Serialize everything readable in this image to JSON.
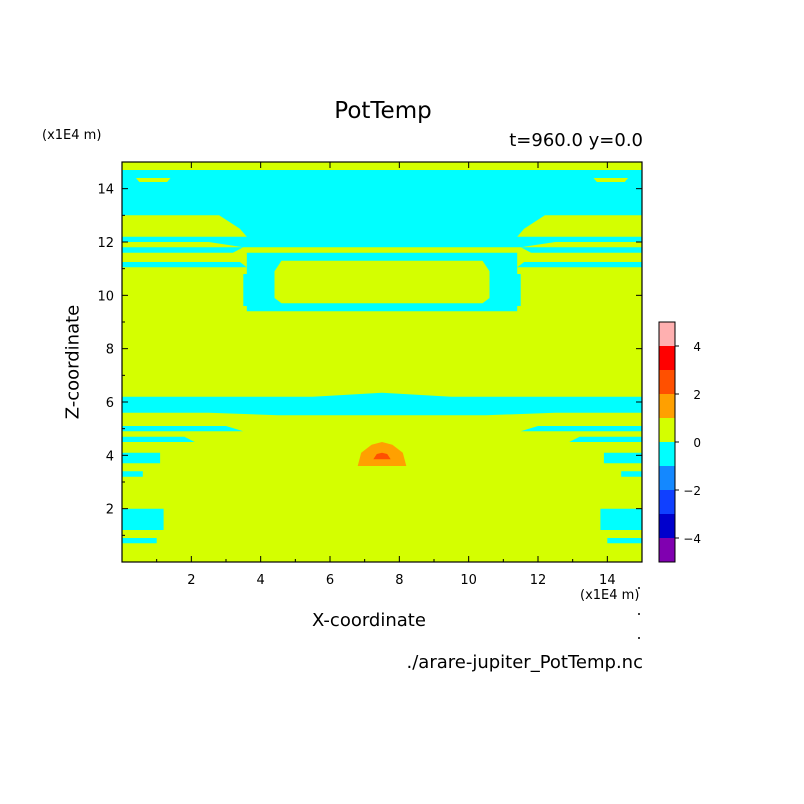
{
  "chart_data": {
    "type": "heatmap",
    "title": "PotTemp",
    "subtitle": "t=960.0 y=0.0",
    "xlabel": "X-coordinate",
    "ylabel": "Z-coordinate",
    "x_unit": "(x1E4 m)",
    "y_unit": "(x1E4 m)",
    "xlim": [
      0,
      15
    ],
    "ylim": [
      0,
      15
    ],
    "xticks": [
      2,
      4,
      6,
      8,
      10,
      12,
      14
    ],
    "yticks": [
      2,
      4,
      6,
      8,
      10,
      12,
      14
    ],
    "colorbar": {
      "levels": [
        -5,
        -4,
        -3,
        -2,
        -1,
        0,
        1,
        2,
        3,
        4,
        5
      ],
      "labels": [
        -4,
        -2,
        0,
        2,
        4
      ],
      "colors": [
        "#8000b0",
        "#0000cc",
        "#1040ff",
        "#1488ff",
        "#00ffff",
        "#d4ff00",
        "#ffa000",
        "#ff5000",
        "#ff0000",
        "#ffb0b0"
      ]
    },
    "background_value_range": [
      0,
      1
    ],
    "features": [
      {
        "name": "upper cold band",
        "value_range": [
          -1,
          0
        ],
        "x_range": [
          0,
          15
        ],
        "z_range": [
          12.0,
          14.7
        ]
      },
      {
        "name": "upper inner cold ring",
        "value_range": [
          -1,
          0
        ],
        "x_range": [
          3.6,
          11.4
        ],
        "z_range": [
          9.4,
          11.8
        ]
      },
      {
        "name": "middle cold layer",
        "value_range": [
          -1,
          0
        ],
        "x_range": [
          0,
          15
        ],
        "z_range": [
          5.5,
          6.3
        ]
      },
      {
        "name": "warm bubble",
        "value_range": [
          1,
          3
        ],
        "x_center": 7.5,
        "z_center": 3.8,
        "peak_value_range": [
          2,
          3
        ]
      },
      {
        "name": "lower side cold patches",
        "value_range": [
          -1,
          0
        ],
        "x_range": [
          [
            0,
            1.2
          ],
          [
            13.8,
            15
          ]
        ],
        "z_range": [
          1.2,
          2.0
        ]
      }
    ]
  },
  "footer": {
    "source": "./arare-jupiter_PotTemp.nc"
  }
}
